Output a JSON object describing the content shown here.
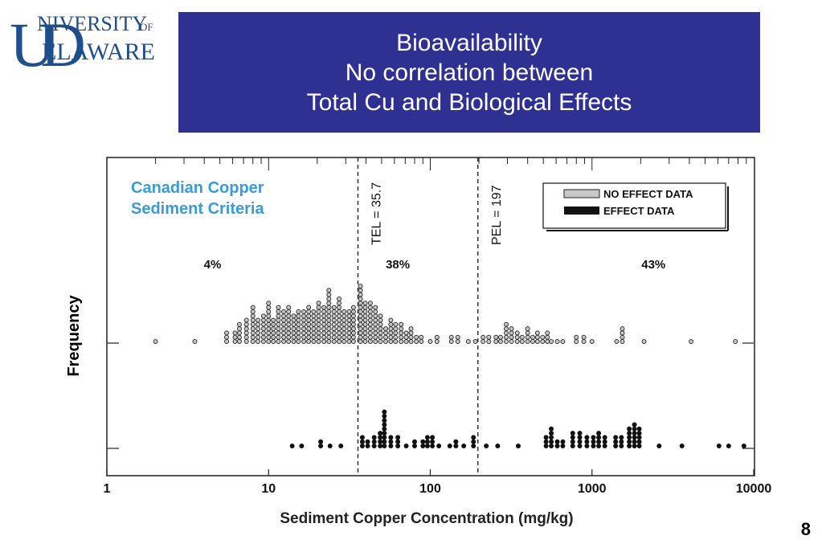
{
  "header": {
    "logo_university": "NIVERSITY",
    "logo_of": "OF",
    "logo_delaware": "ELAWARE",
    "logo_letters": "UD",
    "title_lines": [
      "Bioavailability",
      "No correlation between",
      "Total Cu and Biological Effects"
    ]
  },
  "page_number": "8",
  "colors": {
    "title_background": "#2e3192",
    "logo_blue": "#1f4e8c",
    "criteria_text": "#3a9bd5",
    "no_effect_fill": "#c8c8c8",
    "effect_fill": "#111111"
  },
  "chart_data": {
    "type": "scatter",
    "subtype": "dot-frequency plot",
    "x_scale": "log",
    "xlim": [
      1,
      10000
    ],
    "x_ticks": [
      1,
      10,
      100,
      1000,
      10000
    ],
    "x_tick_labels": [
      "1",
      "10",
      "100",
      "1000",
      "10000"
    ],
    "xlabel": "Sediment Copper Concentration (mg/kg)",
    "ylabel": "Frequency",
    "inset_title_lines": [
      "Canadian Copper",
      "Sediment Criteria"
    ],
    "thresholds": [
      {
        "label": "TEL = 35.7",
        "value": 35.7
      },
      {
        "label": "PEL = 197",
        "value": 197
      }
    ],
    "region_percentages": [
      {
        "label": "4%",
        "x": 4.5
      },
      {
        "label": "38%",
        "x": 63
      },
      {
        "label": "43%",
        "x": 2400
      }
    ],
    "legend": {
      "position": "top-right",
      "entries": [
        "NO EFFECT DATA",
        "EFFECT DATA"
      ]
    },
    "series": [
      {
        "name": "NO EFFECT DATA",
        "points": [
          [
            2.0,
            1
          ],
          [
            3.5,
            1
          ],
          [
            5.5,
            3
          ],
          [
            6.2,
            3
          ],
          [
            6.6,
            5
          ],
          [
            7.3,
            6
          ],
          [
            8.0,
            9
          ],
          [
            8.6,
            6
          ],
          [
            9.3,
            7
          ],
          [
            10.0,
            10
          ],
          [
            10.7,
            6
          ],
          [
            11.5,
            9
          ],
          [
            12.4,
            8
          ],
          [
            13.3,
            9
          ],
          [
            14.3,
            7
          ],
          [
            15.3,
            8
          ],
          [
            16.5,
            8
          ],
          [
            17.7,
            9
          ],
          [
            19.0,
            8
          ],
          [
            20.4,
            10
          ],
          [
            22.0,
            9
          ],
          [
            23.6,
            13
          ],
          [
            25.4,
            9
          ],
          [
            27.3,
            11
          ],
          [
            29.3,
            8
          ],
          [
            31.5,
            8
          ],
          [
            33.5,
            9
          ],
          [
            37.0,
            14
          ],
          [
            39.6,
            10
          ],
          [
            42.6,
            10
          ],
          [
            45.8,
            9
          ],
          [
            49.2,
            7
          ],
          [
            53.0,
            4
          ],
          [
            57.0,
            6
          ],
          [
            61.0,
            5
          ],
          [
            66.0,
            5
          ],
          [
            71.0,
            3
          ],
          [
            76.0,
            4
          ],
          [
            82.0,
            2
          ],
          [
            88.0,
            2
          ],
          [
            100,
            1
          ],
          [
            110,
            2
          ],
          [
            135,
            2
          ],
          [
            148,
            2
          ],
          [
            172,
            1
          ],
          [
            190,
            1
          ],
          [
            212,
            2
          ],
          [
            230,
            2
          ],
          [
            255,
            2
          ],
          [
            272,
            2
          ],
          [
            295,
            5
          ],
          [
            318,
            4
          ],
          [
            345,
            3
          ],
          [
            370,
            2
          ],
          [
            400,
            4
          ],
          [
            430,
            2
          ],
          [
            460,
            3
          ],
          [
            495,
            2
          ],
          [
            530,
            3
          ],
          [
            560,
            1
          ],
          [
            610,
            1
          ],
          [
            660,
            1
          ],
          [
            800,
            2
          ],
          [
            890,
            2
          ],
          [
            1000,
            1
          ],
          [
            1420,
            1
          ],
          [
            1540,
            4
          ],
          [
            2100,
            1
          ],
          [
            4100,
            1
          ],
          [
            7700,
            1
          ]
        ]
      },
      {
        "name": "EFFECT DATA",
        "points": [
          [
            14,
            1
          ],
          [
            16,
            1
          ],
          [
            21,
            2
          ],
          [
            24,
            1
          ],
          [
            28,
            1
          ],
          [
            38,
            3
          ],
          [
            41,
            2
          ],
          [
            45,
            3
          ],
          [
            49,
            4
          ],
          [
            52,
            9
          ],
          [
            57,
            3
          ],
          [
            63,
            3
          ],
          [
            71,
            1
          ],
          [
            80,
            2
          ],
          [
            90,
            2
          ],
          [
            96,
            3
          ],
          [
            103,
            3
          ],
          [
            113,
            1
          ],
          [
            132,
            1
          ],
          [
            144,
            2
          ],
          [
            161,
            1
          ],
          [
            185,
            3
          ],
          [
            222,
            1
          ],
          [
            261,
            1
          ],
          [
            350,
            1
          ],
          [
            520,
            3
          ],
          [
            560,
            5
          ],
          [
            610,
            2
          ],
          [
            660,
            2
          ],
          [
            760,
            4
          ],
          [
            840,
            4
          ],
          [
            930,
            3
          ],
          [
            1020,
            3
          ],
          [
            1100,
            4
          ],
          [
            1200,
            3
          ],
          [
            1400,
            3
          ],
          [
            1520,
            3
          ],
          [
            1700,
            5
          ],
          [
            1830,
            6
          ],
          [
            1960,
            5
          ],
          [
            2600,
            1
          ],
          [
            3600,
            1
          ],
          [
            6100,
            1
          ],
          [
            7000,
            1
          ],
          [
            8700,
            1
          ]
        ]
      }
    ]
  }
}
